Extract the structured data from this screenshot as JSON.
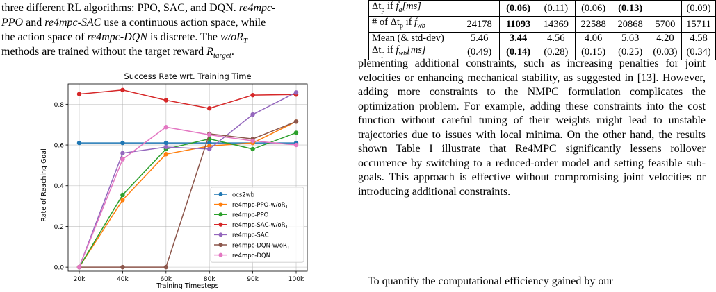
{
  "left_text": {
    "line1_prefix": "three different RL algorithms: PPO, SAC, and DQN.",
    "line1_italic": "re4mpc-",
    "line2_italic": "PPO",
    "line2_mid": "and",
    "line2_italic2": "re4mpc-SAC",
    "line2_rest": "use a continuous action space, while",
    "line3_prefix": "the action space of",
    "line3_italic": "re4mpc-DQN",
    "line3_mid": "is discrete. The",
    "line3_italic2": "w/oR",
    "line3_sub": "T",
    "line4": "methods are trained without the target reward",
    "line4_math": "R",
    "line4_math_sub": "target",
    "line4_end": "."
  },
  "chart_data": {
    "type": "line",
    "title": "Success Rate wrt. Training Time",
    "xlabel": "Training Timesteps",
    "ylabel": "Rate of Reaching Goal",
    "categories": [
      "20k",
      "40k",
      "60k",
      "80k",
      "90k",
      "100k"
    ],
    "ylim": [
      -0.02,
      0.9
    ],
    "yticks": [
      "0.0",
      "0.2",
      "0.4",
      "0.6",
      "0.8"
    ],
    "grid": true,
    "legend_position": "center-right",
    "series": [
      {
        "name": "ocs2wb",
        "color": "#1f77b4",
        "values": [
          0.61,
          0.61,
          0.61,
          0.61,
          0.61,
          0.61
        ]
      },
      {
        "name": "re4mpc-PPO-w/oR",
        "sub": "T",
        "color": "#ff7f0e",
        "values": [
          0.0,
          0.33,
          0.555,
          0.595,
          0.61,
          0.715
        ]
      },
      {
        "name": "re4mpc-PPO",
        "color": "#2ca02c",
        "values": [
          0.0,
          0.355,
          0.58,
          0.63,
          0.58,
          0.66
        ]
      },
      {
        "name": "re4mpc-SAC-w/oR",
        "sub": "T",
        "color": "#d62728",
        "values": [
          0.85,
          0.87,
          0.82,
          0.78,
          0.845,
          0.848
        ]
      },
      {
        "name": "re4mpc-SAC",
        "color": "#9467bd",
        "values": [
          0.0,
          0.56,
          0.59,
          0.58,
          0.75,
          0.858
        ]
      },
      {
        "name": "re4mpc-DQN-w/oR",
        "sub": "T",
        "color": "#8c564b",
        "values": [
          0.0,
          0.0,
          0.0,
          0.655,
          0.63,
          0.715
        ]
      },
      {
        "name": "re4mpc-DQN",
        "color": "#e377c2",
        "values": [
          0.0,
          0.53,
          0.688,
          0.65,
          0.62,
          0.6
        ]
      }
    ]
  },
  "table": {
    "row0": {
      "label": "Δt",
      "label_sub": "p",
      "label_rest": " if ",
      "label_math": "f",
      "label_math_sub": "a",
      "label_unit": "[ms]",
      "cells": [
        "",
        "(0.06)",
        "(0.11)",
        "(0.06)",
        "(0.13)",
        "",
        "(0.09)"
      ]
    },
    "row1": {
      "label": "# of Δt",
      "label_sub": "p",
      "label_rest": " if ",
      "label_math": "f",
      "label_math_sub": "wb",
      "cells": [
        "24178",
        "11093",
        "14369",
        "22588",
        "20868",
        "5700",
        "15711"
      ]
    },
    "row2": {
      "label": "Mean (& std-dev)",
      "cells": [
        "5.46",
        "3.44",
        "4.56",
        "4.06",
        "5.63",
        "4.20",
        "4.58"
      ]
    },
    "row3": {
      "label": "Δt",
      "label_sub": "p",
      "label_rest": " if ",
      "label_math": "f",
      "label_math_sub": "wb",
      "label_unit": "[ms]",
      "cells": [
        "(0.49)",
        "(0.14)",
        "(0.28)",
        "(0.15)",
        "(0.25)",
        "(0.03)",
        "(0.34)"
      ]
    }
  },
  "right_text": {
    "p1": "plementing additional constraints, such as increasing penalties for joint velocities or enhancing mechanical stability, as suggested in [13]. However, adding more constraints to the NMPC formulation complicates the optimization problem. For example, adding these constraints into the cost function without careful tuning of their weights might lead to unstable trajectories due to issues with local minima. On the other hand, the results shown Table I illustrate that Re4MPC significantly lessens rollover occurrence by switching to a reduced-order model and setting feasible sub-goals. This approach is effective without compromising joint velocities or introducing additional constraints.",
    "p2": "To quantify the computational efficiency gained by our"
  }
}
